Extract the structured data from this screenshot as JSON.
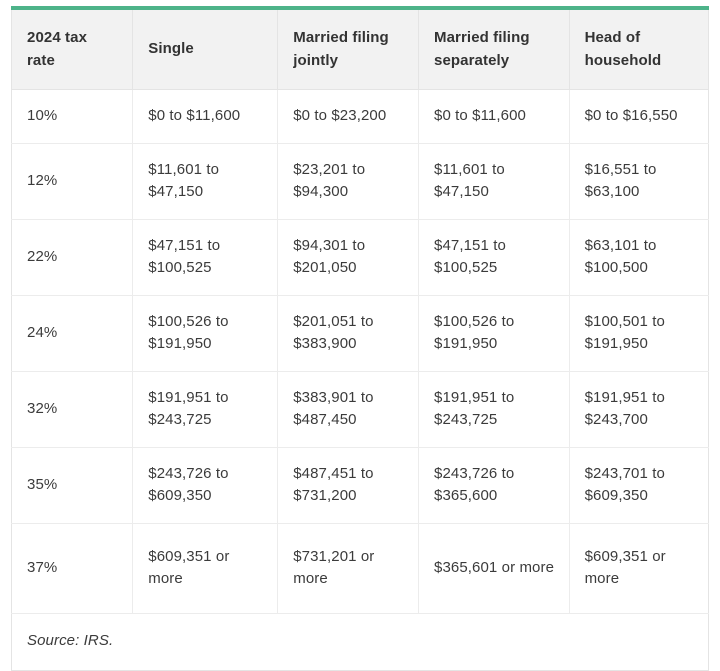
{
  "colors": {
    "accent_teal": "#4db389",
    "header_bg": "#f2f2f2",
    "border": "#e4e4e4",
    "text": "#3b3b3b"
  },
  "table": {
    "columns": [
      "2024 tax rate",
      "Single",
      "Married filing jointly",
      "Married filing separately",
      "Head of household"
    ],
    "rows": [
      {
        "rate": "10%",
        "cells": [
          "$0 to $11,600",
          "$0 to $23,200",
          "$0 to $11,600",
          "$0 to $16,550"
        ]
      },
      {
        "rate": "12%",
        "cells": [
          "$11,601 to $47,150",
          "$23,201 to $94,300",
          "$11,601 to $47,150",
          "$16,551 to $63,100"
        ]
      },
      {
        "rate": "22%",
        "cells": [
          "$47,151 to $100,525",
          "$94,301 to $201,050",
          "$47,151 to $100,525",
          "$63,101 to $100,500"
        ]
      },
      {
        "rate": "24%",
        "cells": [
          "$100,526 to $191,950",
          "$201,051 to $383,900",
          "$100,526 to $191,950",
          "$100,501 to $191,950"
        ]
      },
      {
        "rate": "32%",
        "cells": [
          "$191,951 to $243,725",
          "$383,901 to $487,450",
          "$191,951 to $243,725",
          "$191,951 to $243,700"
        ]
      },
      {
        "rate": "35%",
        "cells": [
          "$243,726 to $609,350",
          "$487,451 to $731,200",
          "$243,726 to $365,600",
          "$243,701 to $609,350"
        ]
      },
      {
        "rate": "37%",
        "cells": [
          "$609,351 or more",
          "$731,201 or more",
          "$365,601 or more",
          "$609,351 or more"
        ]
      }
    ],
    "source": "Source: IRS."
  }
}
